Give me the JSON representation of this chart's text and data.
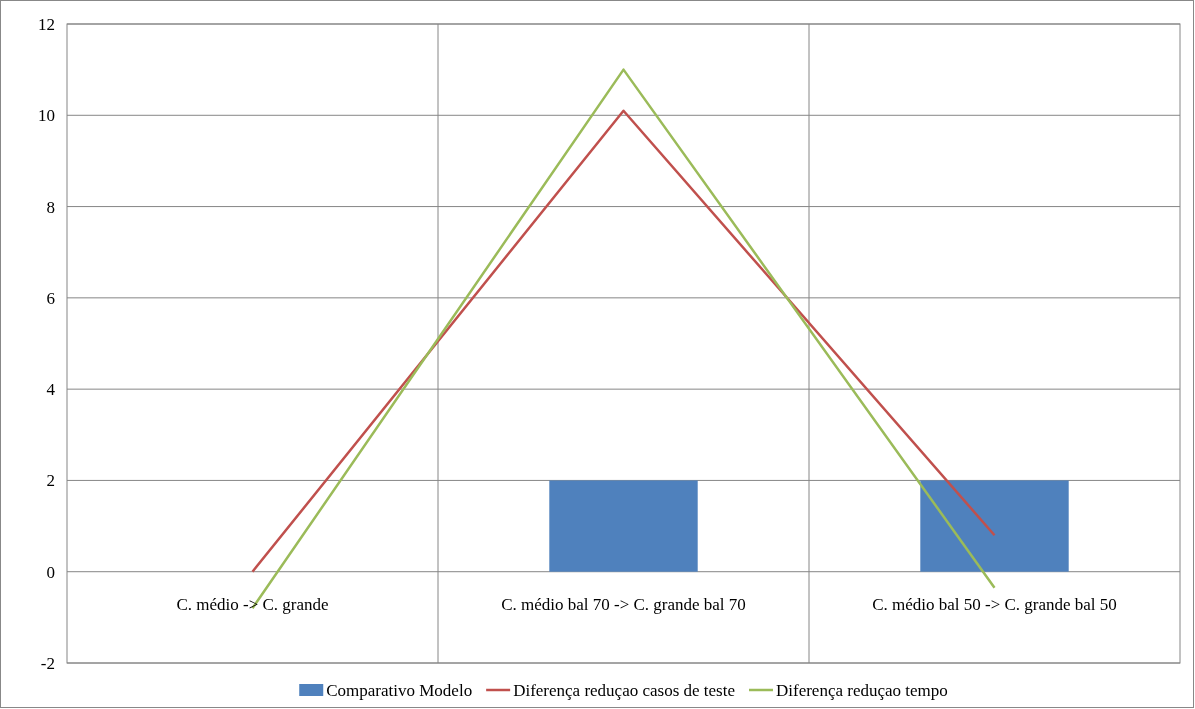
{
  "chart_data": {
    "type": "bar",
    "categories": [
      "C. médio -> C. grande",
      "C. médio bal 70 -> C. grande bal 70",
      "C. médio bal 50 -> C. grande bal 50"
    ],
    "series": [
      {
        "name": "Comparativo Modelo",
        "color": "#4f81bd",
        "values": [
          0,
          2,
          2
        ]
      },
      {
        "name": "Diferença reduçao casos de teste",
        "type": "line",
        "color": "#c0504d",
        "values": [
          0,
          10.1,
          0.8
        ]
      },
      {
        "name": "Diferença reduçao tempo",
        "type": "line",
        "color": "#9bbb59",
        "values": [
          -0.8,
          11,
          -0.35
        ]
      }
    ],
    "ylim": [
      -2,
      12
    ],
    "yticks": [
      -2,
      0,
      2,
      4,
      6,
      8,
      10,
      12
    ],
    "grid": true,
    "legend": "bottom"
  }
}
